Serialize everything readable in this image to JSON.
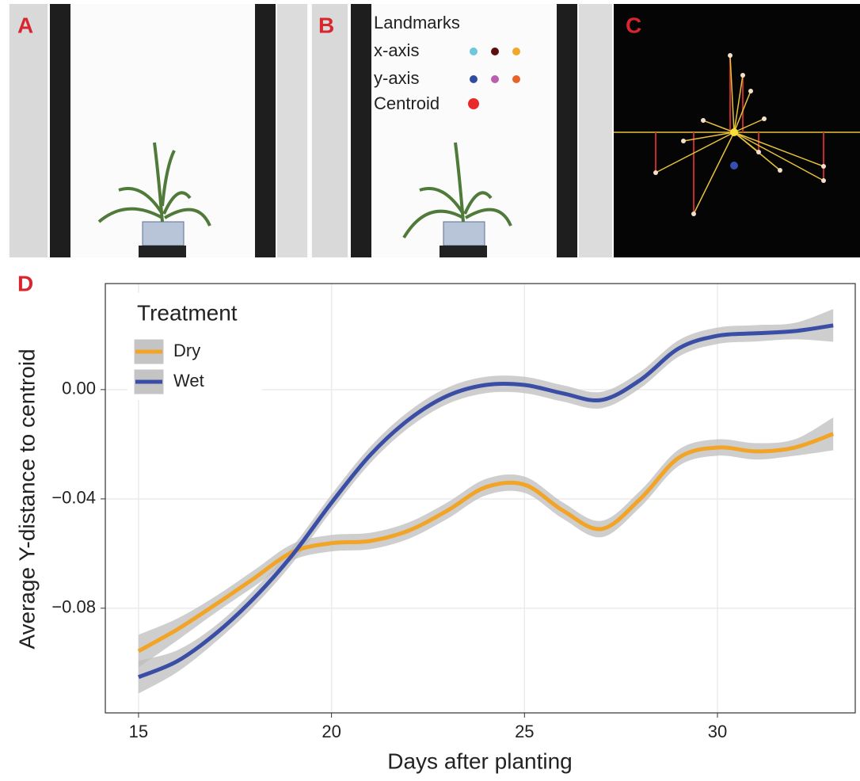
{
  "panel_labels": [
    "A",
    "B",
    "C",
    "D"
  ],
  "landmarks": {
    "title": "Landmarks",
    "items": [
      "x-axis",
      "y-axis",
      "Centroid"
    ]
  },
  "chart_data": {
    "type": "line",
    "x_label": "Days after planting",
    "y_label": "Average Y-distance to centroid",
    "legend_title": "Treatment",
    "legend_position": "top-left",
    "grid": true,
    "x": [
      15,
      16,
      17,
      18,
      19,
      20,
      21,
      22,
      23,
      24,
      25,
      26,
      27,
      28,
      29,
      30,
      31,
      32,
      33
    ],
    "series": [
      {
        "name": "Dry",
        "color": "#f2a427",
        "values": [
          -0.0957,
          -0.0878,
          -0.0786,
          -0.069,
          -0.0594,
          -0.0562,
          -0.0554,
          -0.0516,
          -0.0443,
          -0.0357,
          -0.0348,
          -0.0443,
          -0.051,
          -0.04,
          -0.0249,
          -0.0212,
          -0.0226,
          -0.0212,
          -0.0162
        ],
        "lower": [
          -0.1017,
          -0.0918,
          -0.0816,
          -0.072,
          -0.0624,
          -0.0592,
          -0.0584,
          -0.0546,
          -0.0473,
          -0.0387,
          -0.0378,
          -0.0473,
          -0.054,
          -0.043,
          -0.0279,
          -0.0242,
          -0.0256,
          -0.0242,
          -0.0222
        ],
        "upper": [
          -0.0897,
          -0.0838,
          -0.0756,
          -0.066,
          -0.0564,
          -0.0532,
          -0.0524,
          -0.0486,
          -0.0413,
          -0.0327,
          -0.0318,
          -0.0413,
          -0.048,
          -0.037,
          -0.0219,
          -0.0182,
          -0.0196,
          -0.0182,
          -0.0102
        ]
      },
      {
        "name": "Wet",
        "color": "#3b4ea6",
        "values": [
          -0.1052,
          -0.0994,
          -0.0893,
          -0.0762,
          -0.0603,
          -0.0414,
          -0.024,
          -0.011,
          -0.0023,
          0.0017,
          0.0017,
          -0.0014,
          -0.0038,
          0.0035,
          0.0151,
          0.0197,
          0.0206,
          0.0214,
          0.0235
        ],
        "lower": [
          -0.1112,
          -0.1034,
          -0.0923,
          -0.0792,
          -0.0633,
          -0.0444,
          -0.027,
          -0.014,
          -0.0053,
          -0.0013,
          -0.0013,
          -0.0044,
          -0.0068,
          0.0005,
          0.0121,
          0.0167,
          0.0176,
          0.0184,
          0.0175
        ],
        "upper": [
          -0.0992,
          -0.0954,
          -0.0863,
          -0.0732,
          -0.0573,
          -0.0384,
          -0.021,
          -0.008,
          0.0007,
          0.0047,
          0.0047,
          0.0016,
          -0.0008,
          0.0065,
          0.0181,
          0.0227,
          0.0236,
          0.0244,
          0.0295
        ]
      }
    ],
    "xlim": [
      14.14,
      33.57
    ],
    "ylim": [
      -0.1183,
      0.0388
    ],
    "xticks": [
      15,
      20,
      25,
      30
    ],
    "yticks": [
      {
        "value": -0.08,
        "label": "−0.08"
      },
      {
        "value": -0.04,
        "label": "−0.04"
      },
      {
        "value": 0,
        "label": "0.00"
      }
    ]
  }
}
